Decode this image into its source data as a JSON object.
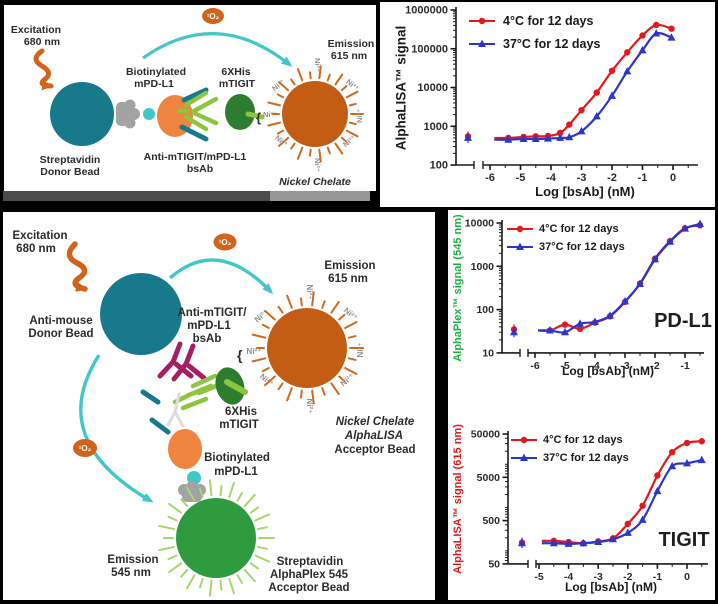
{
  "colors": {
    "series_red": "#e2191c",
    "series_blue": "#2d35cb",
    "donor_bead_teal": "#17798b",
    "acceptor_bead_orange": "#c35d13",
    "acceptor_rays_orange": "#cf6a1f",
    "alphaplex_bead_green": "#2e9b3e",
    "alphaplex_rays_green": "#a8d56d",
    "antigen_orange": "#ee8440",
    "mtigit_dark_green": "#2d7d2f",
    "antibody_light_green": "#8cc63f",
    "antibody_magenta": "#a51e62",
    "singlet_oxygen_arc_cyan": "#41c6ca",
    "excitation_orange": "#d2631c",
    "streptavidin_gray": "#a3a3a3",
    "biotin_cyan": "#3ec8c8",
    "pdl1_axis_green": "#19b33f",
    "tigit_axis_red": "#e2191c"
  },
  "figure": {
    "diagram1": {
      "excitation": [
        "Excitation",
        "680 nm"
      ],
      "singlet_oxygen": "¹O₂",
      "donor_bead": [
        "Streptavidin",
        "Donor Bead"
      ],
      "biotinylated": [
        "Biotinylated",
        "mPD-L1"
      ],
      "bsab": [
        "Anti-mTIGIT/mPD-L1",
        "bsAb"
      ],
      "his_tag": [
        "6XHis",
        "mTIGIT"
      ],
      "nickel": "Ni²⁺",
      "brace_open": "{",
      "brace_close": "}",
      "emission": [
        "Emission",
        "615 nm"
      ],
      "acceptor_bead": "Nickel Chelate"
    },
    "diagram2": {
      "excitation": [
        "Excitation",
        "680 nm"
      ],
      "singlet_oxygen": "¹O₂",
      "donor_bead": [
        "Anti-mouse",
        "Donor Bead"
      ],
      "bsab": [
        "Anti-mTIGIT/",
        "mPD-L1",
        "bsAb"
      ],
      "his_tag": [
        "6XHis",
        "mTIGIT"
      ],
      "biotinylated": [
        "Biotinylated",
        "mPD-L1"
      ],
      "nickel": "Ni²⁺",
      "brace_open": "{",
      "emission_615": [
        "Emission",
        "615 nm"
      ],
      "emission_545": [
        "Emission",
        "545 nm"
      ],
      "nickel_acceptor": [
        "Nickel Chelate",
        "AlphaLISA",
        "Acceptor Bead"
      ],
      "strep_acceptor": [
        "Streptavidin",
        "AlphaPlex 545",
        "Acceptor Bead"
      ]
    }
  },
  "chart_data": [
    {
      "type": "line",
      "yscale": "log",
      "xscale": "linear",
      "ylabel": "AlphaLISA™ signal",
      "ylabel_color": "#1a1a1a",
      "xlabel": "Log [bsAb] (nM)",
      "ylim": [
        100,
        1000000
      ],
      "yticks": [
        100,
        1000,
        10000,
        100000,
        1000000
      ],
      "ytick_labels": [
        "100",
        "1000",
        "10000",
        "100000",
        "1000000"
      ],
      "ytick_color": "#1a1a1a",
      "xticks": [
        -6,
        -5,
        -4,
        -3,
        -2,
        -1,
        0
      ],
      "axis_break": true,
      "legend_position": "top-left",
      "series": [
        {
          "name": "4°C for 12 days",
          "color": "#e2191c",
          "marker": "circle",
          "control": 550,
          "x": [
            -5.4,
            -4.9,
            -4.5,
            -4.1,
            -3.7,
            -3.4,
            -3.0,
            -2.5,
            -2.0,
            -1.5,
            -1.0,
            -0.55,
            -0.05
          ],
          "y": [
            500,
            530,
            550,
            560,
            670,
            1100,
            2600,
            7400,
            27000,
            81000,
            220000,
            410000,
            330000
          ]
        },
        {
          "name": "37°C for 12 days",
          "color": "#2d35cb",
          "marker": "triangle",
          "control": 500,
          "x": [
            -5.4,
            -4.9,
            -4.5,
            -4.1,
            -3.7,
            -3.4,
            -3.0,
            -2.5,
            -2.0,
            -1.5,
            -1.0,
            -0.55,
            -0.05
          ],
          "y": [
            450,
            470,
            470,
            480,
            500,
            520,
            740,
            1800,
            6100,
            26000,
            91000,
            247000,
            194000
          ]
        }
      ]
    },
    {
      "type": "line",
      "yscale": "log",
      "xscale": "linear",
      "ylabel": "AlphaPlex™ signal  (545 nm)",
      "ylabel_color": "#19b33f",
      "xlabel": "Log [bsAb] (nM)",
      "annotation": "PD-L1",
      "ylim": [
        10,
        10000
      ],
      "yticks": [
        10,
        100,
        1000,
        10000
      ],
      "ytick_labels": [
        "10",
        "100",
        "1000",
        "10000"
      ],
      "ytick_color": "#19b33f",
      "xticks": [
        -6,
        -5,
        -4,
        -3,
        -2,
        -1
      ],
      "axis_break": true,
      "legend_position": "top-left",
      "series": [
        {
          "name": "4°C for 12 days",
          "color": "#e2191c",
          "marker": "circle",
          "control": 35,
          "x": [
            -5.5,
            -5.0,
            -4.5,
            -4.0,
            -3.5,
            -3.0,
            -2.5,
            -2.0,
            -1.5,
            -1.0,
            -0.5
          ],
          "y": [
            33,
            45,
            36,
            50,
            70,
            150,
            400,
            1500,
            3800,
            7600,
            8800
          ]
        },
        {
          "name": "37°C for 12 days",
          "color": "#2d35cb",
          "marker": "triangle",
          "control": 30,
          "x": [
            -5.5,
            -5.0,
            -4.5,
            -4.0,
            -3.5,
            -3.0,
            -2.5,
            -2.0,
            -1.5,
            -1.0,
            -0.5
          ],
          "y": [
            33,
            30,
            47,
            52,
            72,
            155,
            390,
            1450,
            3700,
            7400,
            9500
          ]
        }
      ]
    },
    {
      "type": "line",
      "yscale": "log",
      "xscale": "linear",
      "ylabel": "AlphaLISA™ signal (615 nm)",
      "ylabel_color": "#e2191c",
      "xlabel": "Log [bsAb] (nM)",
      "annotation": "TIGIT",
      "ylim": [
        50,
        50000
      ],
      "yticks": [
        50,
        500,
        5000,
        50000
      ],
      "ytick_labels": [
        "50",
        "500",
        "5000",
        "50000"
      ],
      "ytick_color": "#e2191c",
      "xticks": [
        -5,
        -4,
        -3,
        -2,
        -1,
        0
      ],
      "axis_break": true,
      "legend_position": "top-left",
      "series": [
        {
          "name": "4°C for 12 days",
          "color": "#e2191c",
          "marker": "circle",
          "control": 155,
          "x": [
            -4.5,
            -4.0,
            -3.5,
            -3.0,
            -2.5,
            -2.0,
            -1.5,
            -1.0,
            -0.5,
            0.0,
            0.5
          ],
          "y": [
            170,
            160,
            150,
            165,
            195,
            420,
            1100,
            5500,
            19000,
            31000,
            34000
          ]
        },
        {
          "name": "37°C for 12 days",
          "color": "#2d35cb",
          "marker": "triangle",
          "control": 150,
          "x": [
            -4.5,
            -4.0,
            -3.5,
            -3.0,
            -2.5,
            -2.0,
            -1.5,
            -1.0,
            -0.5,
            0.0,
            0.5
          ],
          "y": [
            150,
            145,
            150,
            160,
            185,
            260,
            520,
            2400,
            9000,
            10500,
            12500
          ]
        }
      ]
    }
  ]
}
